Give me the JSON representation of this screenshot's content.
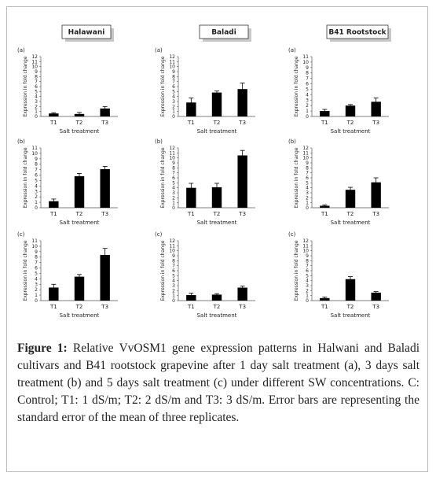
{
  "columns": [
    "Halawani",
    "Baladi",
    "B41 Rootstock"
  ],
  "chart_data": [
    {
      "type": "bar",
      "panel": "(a)",
      "categories": [
        "T1",
        "T2",
        "T3"
      ],
      "values": [
        0.6,
        0.5,
        1.6
      ],
      "errors": [
        0.15,
        0.3,
        0.4
      ],
      "ylabel": "Expression in fold change",
      "xlabel": "Salt treatment",
      "ylim": [
        0,
        12
      ],
      "yticks": [
        0,
        1,
        2,
        3,
        4,
        5,
        6,
        7,
        8,
        9,
        10,
        11,
        12
      ],
      "color": "#000000"
    },
    {
      "type": "bar",
      "panel": "(a)",
      "categories": [
        "T1",
        "T2",
        "T3"
      ],
      "values": [
        2.8,
        4.8,
        5.5
      ],
      "errors": [
        0.9,
        0.3,
        1.2
      ],
      "ylabel": "Expression in fold change",
      "xlabel": "Salt treatment",
      "ylim": [
        0,
        12
      ],
      "yticks": [
        0,
        1,
        2,
        3,
        4,
        5,
        6,
        7,
        8,
        9,
        10,
        11,
        12
      ],
      "color": "#000000"
    },
    {
      "type": "bar",
      "panel": "(a)",
      "categories": [
        "T1",
        "T2",
        "T3"
      ],
      "values": [
        1.0,
        2.0,
        2.7
      ],
      "errors": [
        0.3,
        0.2,
        0.7
      ],
      "ylabel": "Expression in fold change",
      "xlabel": "Salt treatment",
      "ylim": [
        0,
        11
      ],
      "yticks": [
        0,
        1,
        2,
        3,
        4,
        5,
        6,
        7,
        8,
        9,
        10,
        11
      ],
      "color": "#000000"
    },
    {
      "type": "bar",
      "panel": "(b)",
      "categories": [
        "T1",
        "T2",
        "T3"
      ],
      "values": [
        1.2,
        5.8,
        7.1
      ],
      "errors": [
        0.4,
        0.5,
        0.5
      ],
      "ylabel": "Expression in fold change",
      "xlabel": "Salt treatment",
      "ylim": [
        0,
        11
      ],
      "yticks": [
        0,
        1,
        2,
        3,
        4,
        5,
        6,
        7,
        8,
        9,
        10,
        11
      ],
      "color": "#000000"
    },
    {
      "type": "bar",
      "panel": "(b)",
      "categories": [
        "T1",
        "T2",
        "T3"
      ],
      "values": [
        4.0,
        4.1,
        10.5
      ],
      "errors": [
        0.9,
        0.8,
        1.0
      ],
      "ylabel": "Expression in fold change",
      "xlabel": "Salt treatment",
      "ylim": [
        0,
        12
      ],
      "yticks": [
        0,
        1,
        2,
        3,
        4,
        5,
        6,
        7,
        8,
        9,
        10,
        11,
        12
      ],
      "color": "#000000"
    },
    {
      "type": "bar",
      "panel": "(b)",
      "categories": [
        "T1",
        "T2",
        "T3"
      ],
      "values": [
        0.4,
        3.6,
        5.1
      ],
      "errors": [
        0.15,
        0.5,
        0.9
      ],
      "ylabel": "Expression in fold change",
      "xlabel": "Salt treatment",
      "ylim": [
        0,
        12
      ],
      "yticks": [
        0,
        1,
        2,
        3,
        4,
        5,
        6,
        7,
        8,
        9,
        10,
        11,
        12
      ],
      "color": "#000000"
    },
    {
      "type": "bar",
      "panel": "(c)",
      "categories": [
        "T1",
        "T2",
        "T3"
      ],
      "values": [
        2.4,
        4.4,
        8.4
      ],
      "errors": [
        0.6,
        0.4,
        1.2
      ],
      "ylabel": "Expression in fold change",
      "xlabel": "Salt treatment",
      "ylim": [
        0,
        11
      ],
      "yticks": [
        0,
        1,
        2,
        3,
        4,
        5,
        6,
        7,
        8,
        9,
        10,
        11
      ],
      "color": "#000000"
    },
    {
      "type": "bar",
      "panel": "(c)",
      "categories": [
        "T1",
        "T2",
        "T3"
      ],
      "values": [
        1.1,
        1.2,
        2.6
      ],
      "errors": [
        0.4,
        0.2,
        0.3
      ],
      "ylabel": "Expression in fold change",
      "xlabel": "Salt treatment",
      "ylim": [
        0,
        12
      ],
      "yticks": [
        0,
        1,
        2,
        3,
        4,
        5,
        6,
        7,
        8,
        9,
        10,
        11,
        12
      ],
      "color": "#000000"
    },
    {
      "type": "bar",
      "panel": "(c)",
      "categories": [
        "T1",
        "T2",
        "T3"
      ],
      "values": [
        0.5,
        4.3,
        1.6
      ],
      "errors": [
        0.2,
        0.5,
        0.2
      ],
      "ylabel": "Expression in fold change",
      "xlabel": "Salt treatment",
      "ylim": [
        0,
        12
      ],
      "yticks": [
        0,
        1,
        2,
        3,
        4,
        5,
        6,
        7,
        8,
        9,
        10,
        11,
        12
      ],
      "color": "#000000"
    }
  ],
  "caption": {
    "label": "Figure 1:",
    "text": "Relative VvOSM1 gene expression patterns in Halwani and Baladi cultivars and B41 rootstock grapevine after 1 day salt treatment (a), 3 days salt treatment (b) and 5 days salt treatment (c) under different SW concentrations. C: Control; T1: 1 dS/m; T2: 2 dS/m and T3: 3 dS/m. Error bars are representing the standard error of the mean of three replicates."
  }
}
